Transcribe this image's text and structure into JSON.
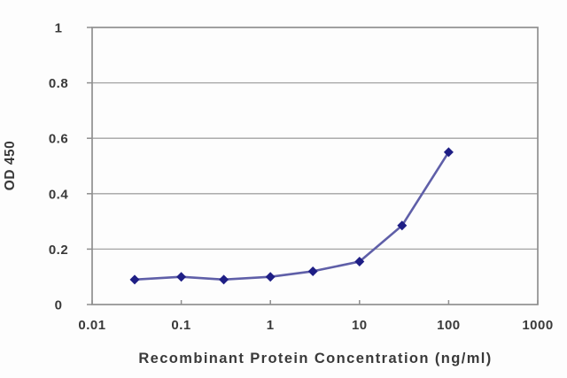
{
  "chart_data": {
    "type": "line",
    "x": [
      0.03,
      0.1,
      0.3,
      1,
      3,
      10,
      30,
      100
    ],
    "y": [
      0.09,
      0.1,
      0.09,
      0.1,
      0.12,
      0.155,
      0.285,
      0.55
    ],
    "xlabel": "Recombinant Protein Concentration (ng/ml)",
    "ylabel": "OD 450",
    "x_scale": "log",
    "xlim": [
      0.01,
      1000
    ],
    "ylim": [
      0,
      1
    ],
    "x_ticks": [
      0.01,
      0.1,
      1,
      10,
      100,
      1000
    ],
    "x_tick_labels": [
      "0.01",
      "0.1",
      "1",
      "10",
      "100",
      "1000"
    ],
    "y_ticks": [
      0,
      0.2,
      0.4,
      0.6,
      0.8,
      1
    ],
    "y_tick_labels": [
      "0",
      "0.2",
      "0.4",
      "0.6",
      "0.8",
      "1"
    ],
    "grid": "horizontal",
    "legend": "none",
    "marker": "diamond",
    "colors": {
      "line": "#5f5fa8",
      "marker": "#1e1e85",
      "gridline": "#a3a3a3",
      "frame": "#8f8f8f",
      "text": "#3a3a3a",
      "background": "#fdfdfd"
    }
  }
}
